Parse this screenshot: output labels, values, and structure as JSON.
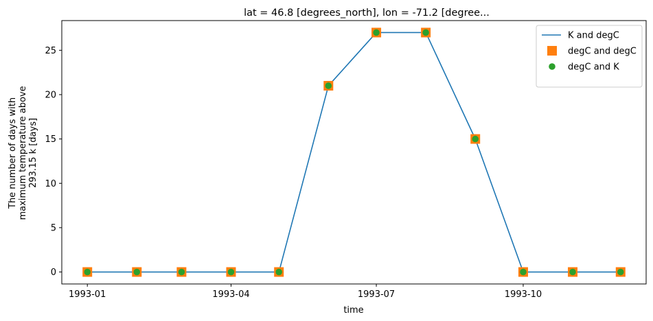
{
  "chart_data": {
    "type": "line",
    "title": "lat = 46.8 [degrees_north], lon = -71.2 [degree...",
    "xlabel": "time",
    "ylabel_lines": [
      "The number of days with",
      "maximum temperature above",
      "293.15 k [days]"
    ],
    "x": [
      "1993-01-01",
      "1993-02-01",
      "1993-03-01",
      "1993-04-01",
      "1993-05-01",
      "1993-06-01",
      "1993-07-01",
      "1993-08-01",
      "1993-09-01",
      "1993-10-01",
      "1993-11-01",
      "1993-12-01"
    ],
    "xticks": [
      "1993-01",
      "1993-04",
      "1993-07",
      "1993-10"
    ],
    "xlim": [
      "1992-12-16",
      "1993-12-17"
    ],
    "ylim": [
      -1.35,
      28.35
    ],
    "yticks": [
      0,
      5,
      10,
      15,
      20,
      25
    ],
    "grid": false,
    "legend_position": "top-right",
    "series": [
      {
        "name": "K and degC",
        "style": "line",
        "color": "#1f77b4",
        "values": [
          0,
          0,
          0,
          0,
          0,
          21,
          27,
          27,
          15,
          0,
          0,
          0
        ]
      },
      {
        "name": "degC and degC",
        "style": "square",
        "color": "#ff7f0e",
        "values": [
          0,
          0,
          0,
          0,
          0,
          21,
          27,
          27,
          15,
          0,
          0,
          0
        ]
      },
      {
        "name": "degC and K",
        "style": "circle",
        "color": "#2ca02c",
        "values": [
          0,
          0,
          0,
          0,
          0,
          21,
          27,
          27,
          15,
          0,
          0,
          0
        ]
      }
    ]
  }
}
